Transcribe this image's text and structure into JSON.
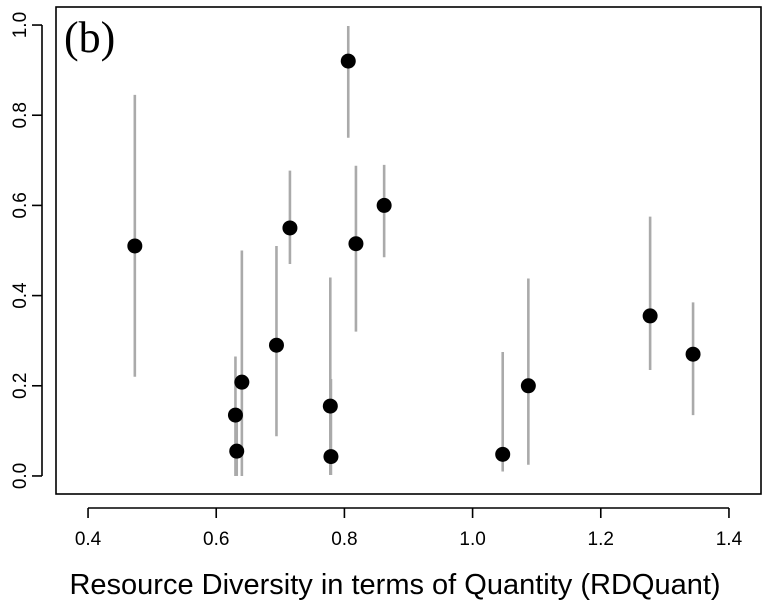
{
  "chart_data": {
    "type": "scatter",
    "panel_label": "(b)",
    "title": "",
    "xlabel": "Resource Diversity in terms of Quantity (RDQuant)",
    "ylabel": "",
    "xlim": [
      0.35,
      1.45
    ],
    "ylim": [
      -0.04,
      1.04
    ],
    "xticks": [
      {
        "value": 0.4,
        "label": "0.4"
      },
      {
        "value": 0.6,
        "label": "0.6"
      },
      {
        "value": 0.8,
        "label": "0.8"
      },
      {
        "value": 1.0,
        "label": "1.0"
      },
      {
        "value": 1.2,
        "label": "1.2"
      },
      {
        "value": 1.4,
        "label": "1.4"
      }
    ],
    "yticks": [
      {
        "value": 0.0,
        "label": "0.0"
      },
      {
        "value": 0.2,
        "label": "0.2"
      },
      {
        "value": 0.4,
        "label": "0.4"
      },
      {
        "value": 0.6,
        "label": "0.6"
      },
      {
        "value": 0.8,
        "label": "0.8"
      },
      {
        "value": 1.0,
        "label": "1.0"
      }
    ],
    "grid": false,
    "legend": "none",
    "point_color": "#000000",
    "errorbar_color": "#aaaaaa",
    "points": [
      {
        "x": 0.473,
        "y": 0.51,
        "low": 0.22,
        "high": 0.845
      },
      {
        "x": 0.63,
        "y": 0.135,
        "low": 0.0,
        "high": 0.265
      },
      {
        "x": 0.632,
        "y": 0.055,
        "low": 0.0,
        "high": 0.135
      },
      {
        "x": 0.64,
        "y": 0.208,
        "low": 0.0,
        "high": 0.5
      },
      {
        "x": 0.694,
        "y": 0.29,
        "low": 0.088,
        "high": 0.51
      },
      {
        "x": 0.715,
        "y": 0.55,
        "low": 0.47,
        "high": 0.677
      },
      {
        "x": 0.778,
        "y": 0.155,
        "low": 0.002,
        "high": 0.44
      },
      {
        "x": 0.779,
        "y": 0.043,
        "low": 0.002,
        "high": 0.215
      },
      {
        "x": 0.806,
        "y": 0.92,
        "low": 0.75,
        "high": 0.998
      },
      {
        "x": 0.818,
        "y": 0.515,
        "low": 0.32,
        "high": 0.688
      },
      {
        "x": 0.862,
        "y": 0.6,
        "low": 0.485,
        "high": 0.69
      },
      {
        "x": 1.047,
        "y": 0.048,
        "low": 0.01,
        "high": 0.275
      },
      {
        "x": 1.087,
        "y": 0.2,
        "low": 0.025,
        "high": 0.438
      },
      {
        "x": 1.277,
        "y": 0.355,
        "low": 0.235,
        "high": 0.575
      },
      {
        "x": 1.344,
        "y": 0.27,
        "low": 0.135,
        "high": 0.385
      }
    ]
  }
}
